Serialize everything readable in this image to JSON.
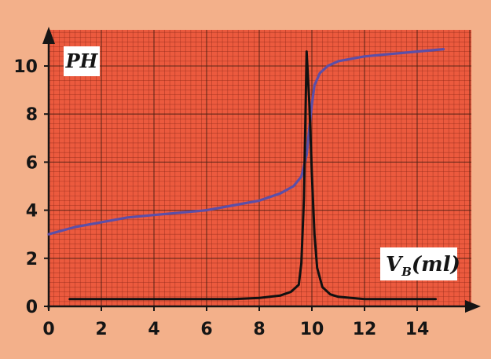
{
  "chart_data": {
    "type": "line",
    "title": "",
    "xlabel": {
      "main": "V",
      "sub": "B",
      "rest": "(ml)"
    },
    "ylabel": "PH",
    "xlim": [
      0,
      15.5
    ],
    "ylim": [
      0,
      11
    ],
    "x_ticks": [
      "0",
      "2",
      "4",
      "6",
      "8",
      "10",
      "12",
      "14"
    ],
    "y_ticks": [
      "0",
      "2",
      "4",
      "6",
      "8",
      "10"
    ],
    "grid": true,
    "series": [
      {
        "id": "ph",
        "color": "#5b4fa8",
        "x": [
          0,
          1,
          2,
          3,
          4,
          5,
          6,
          7,
          8,
          8.8,
          9.3,
          9.6,
          9.8,
          9.9,
          10.0,
          10.1,
          10.3,
          10.6,
          11.0,
          11.5,
          12,
          13,
          14,
          15
        ],
        "y": [
          3.0,
          3.3,
          3.5,
          3.7,
          3.8,
          3.9,
          4.0,
          4.2,
          4.4,
          4.7,
          5.0,
          5.4,
          6.3,
          7.4,
          8.4,
          9.2,
          9.7,
          10.0,
          10.2,
          10.3,
          10.4,
          10.5,
          10.6,
          10.7
        ]
      },
      {
        "id": "derivative",
        "color": "#111111",
        "x": [
          0.8,
          2,
          4,
          6,
          7,
          8,
          8.8,
          9.2,
          9.5,
          9.6,
          9.7,
          9.75,
          9.8,
          9.9,
          10.0,
          10.1,
          10.2,
          10.4,
          10.7,
          11.0,
          11.5,
          12,
          13,
          14,
          14.7
        ],
        "y": [
          0.3,
          0.3,
          0.3,
          0.3,
          0.3,
          0.35,
          0.45,
          0.6,
          0.9,
          1.8,
          4.5,
          7.5,
          10.6,
          8.5,
          5.5,
          3.0,
          1.6,
          0.8,
          0.5,
          0.4,
          0.35,
          0.3,
          0.3,
          0.3,
          0.3
        ]
      }
    ]
  }
}
